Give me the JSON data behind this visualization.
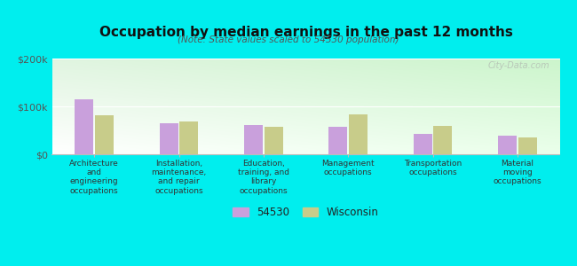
{
  "title": "Occupation by median earnings in the past 12 months",
  "subtitle": "(Note: State values scaled to 54530 population)",
  "categories": [
    "Architecture\nand\nengineering\noccupations",
    "Installation,\nmaintenance,\nand repair\noccupations",
    "Education,\ntraining, and\nlibrary\noccupations",
    "Management\noccupations",
    "Transportation\noccupations",
    "Material\nmoving\noccupations"
  ],
  "values_54530": [
    115000,
    65000,
    62000,
    58000,
    42000,
    38000
  ],
  "values_wisconsin": [
    82000,
    68000,
    58000,
    83000,
    60000,
    35000
  ],
  "color_54530": "#c9a0dc",
  "color_wisconsin": "#c8cc8a",
  "background_fig": "#00eeee",
  "ylim": [
    0,
    200000
  ],
  "yticks": [
    0,
    100000,
    200000
  ],
  "ytick_labels": [
    "$0",
    "$100k",
    "$200k"
  ],
  "legend_label_54530": "54530",
  "legend_label_wisconsin": "Wisconsin",
  "watermark": "City-Data.com",
  "bar_width": 0.22,
  "bar_gap": 0.02
}
